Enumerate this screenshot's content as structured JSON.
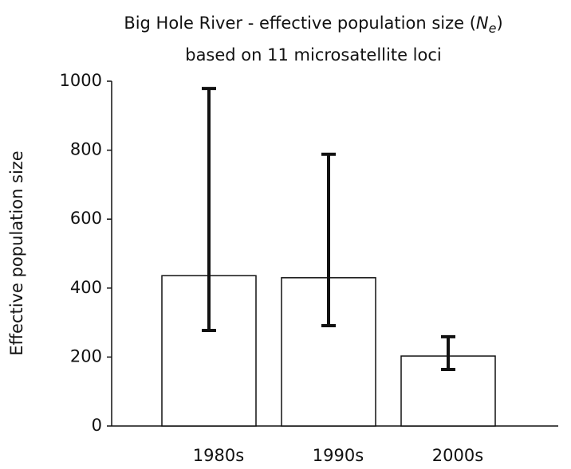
{
  "chart_data": {
    "type": "bar",
    "title_parts": [
      "Big Hole River - effective population size (",
      "N",
      "e",
      ")"
    ],
    "subtitle": "based on 11 microsatellite loci",
    "y_label": "Effective population size",
    "categories": [
      "1980s",
      "1990s",
      "2000s"
    ],
    "values": [
      436,
      430,
      203
    ],
    "lower": [
      277,
      291,
      164
    ],
    "upper": [
      979,
      788,
      259
    ],
    "color": "#ffffff",
    "ylim": [
      0,
      1000
    ],
    "yticks": [
      0,
      200,
      400,
      600,
      800,
      1000
    ],
    "grid": false
  }
}
